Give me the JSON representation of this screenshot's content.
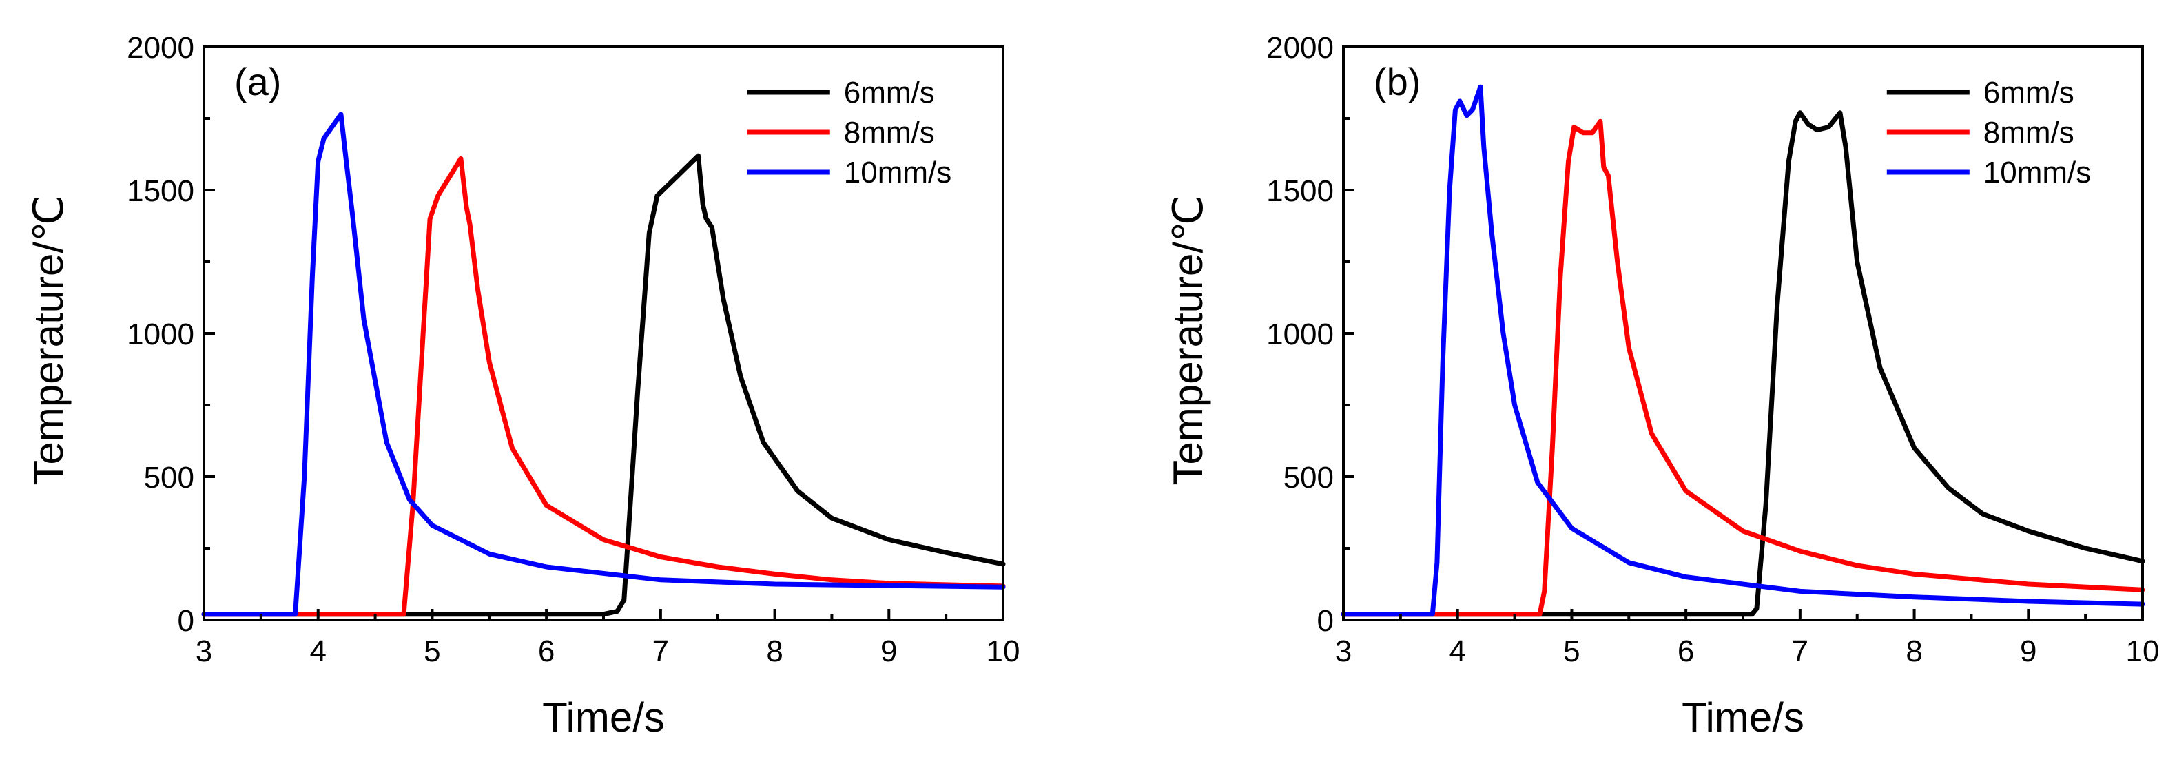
{
  "chart_data": [
    {
      "type": "line",
      "panel_label": "(a)",
      "xlabel": "Time/s",
      "ylabel": "Temperature/℃",
      "xlim": [
        3,
        10
      ],
      "ylim": [
        0,
        2000
      ],
      "xticks": [
        "3",
        "4",
        "5",
        "6",
        "7",
        "8",
        "9",
        "10"
      ],
      "yticks": [
        "0",
        "500",
        "1000",
        "1500",
        "2000"
      ],
      "legend_position": "top-right",
      "series": [
        {
          "name": "6mm/s",
          "color": "#000000",
          "x": [
            3,
            6.5,
            6.62,
            6.68,
            6.8,
            6.9,
            6.97,
            7.15,
            7.33,
            7.37,
            7.4,
            7.45,
            7.55,
            7.7,
            7.9,
            8.2,
            8.5,
            9.0,
            9.5,
            10
          ],
          "y": [
            20,
            20,
            30,
            70,
            800,
            1350,
            1480,
            1550,
            1620,
            1450,
            1400,
            1370,
            1120,
            850,
            620,
            450,
            355,
            280,
            235,
            195
          ]
        },
        {
          "name": "8mm/s",
          "color": "#ff0000",
          "x": [
            3,
            4.75,
            4.83,
            4.92,
            4.98,
            5.05,
            5.25,
            5.3,
            5.33,
            5.4,
            5.5,
            5.7,
            6.0,
            6.5,
            7.0,
            7.5,
            8.0,
            8.5,
            9.0,
            10
          ],
          "y": [
            20,
            20,
            400,
            1000,
            1400,
            1480,
            1610,
            1440,
            1380,
            1150,
            900,
            600,
            400,
            280,
            220,
            185,
            160,
            140,
            128,
            118
          ]
        },
        {
          "name": "10mm/s",
          "color": "#0000ff",
          "x": [
            3,
            3.8,
            3.88,
            3.95,
            4.0,
            4.05,
            4.2,
            4.25,
            4.3,
            4.4,
            4.6,
            4.8,
            5.0,
            5.5,
            6.0,
            7.0,
            8.0,
            9.0,
            10
          ],
          "y": [
            20,
            20,
            500,
            1200,
            1600,
            1680,
            1765,
            1590,
            1420,
            1050,
            620,
            420,
            330,
            230,
            185,
            140,
            125,
            120,
            115
          ]
        }
      ]
    },
    {
      "type": "line",
      "panel_label": "(b)",
      "xlabel": "Time/s",
      "ylabel": "Temperature/℃",
      "xlim": [
        3,
        10
      ],
      "ylim": [
        0,
        2000
      ],
      "xticks": [
        "3",
        "4",
        "5",
        "6",
        "7",
        "8",
        "9",
        "10"
      ],
      "yticks": [
        "0",
        "500",
        "1000",
        "1500",
        "2000"
      ],
      "legend_position": "top-right",
      "series": [
        {
          "name": "6mm/s",
          "color": "#000000",
          "x": [
            3,
            6.58,
            6.62,
            6.7,
            6.8,
            6.9,
            6.96,
            7.0,
            7.07,
            7.15,
            7.25,
            7.35,
            7.4,
            7.5,
            7.7,
            8.0,
            8.3,
            8.6,
            9.0,
            9.5,
            10
          ],
          "y": [
            20,
            20,
            40,
            400,
            1100,
            1600,
            1740,
            1770,
            1730,
            1710,
            1720,
            1770,
            1650,
            1250,
            880,
            600,
            460,
            370,
            310,
            250,
            205
          ]
        },
        {
          "name": "8mm/s",
          "color": "#ff0000",
          "x": [
            3,
            4.72,
            4.76,
            4.83,
            4.9,
            4.97,
            5.02,
            5.1,
            5.18,
            5.25,
            5.28,
            5.32,
            5.4,
            5.5,
            5.7,
            6.0,
            6.5,
            7.0,
            7.5,
            8.0,
            9.0,
            10
          ],
          "y": [
            20,
            20,
            100,
            600,
            1200,
            1600,
            1720,
            1700,
            1700,
            1740,
            1580,
            1550,
            1250,
            950,
            650,
            450,
            310,
            240,
            190,
            160,
            125,
            105
          ]
        },
        {
          "name": "10mm/s",
          "color": "#0000ff",
          "x": [
            3,
            3.78,
            3.82,
            3.87,
            3.93,
            3.98,
            4.02,
            4.08,
            4.13,
            4.2,
            4.23,
            4.3,
            4.4,
            4.5,
            4.7,
            5.0,
            5.5,
            6.0,
            7.0,
            8.0,
            9.0,
            10
          ],
          "y": [
            20,
            20,
            200,
            900,
            1500,
            1780,
            1810,
            1760,
            1780,
            1860,
            1650,
            1350,
            1000,
            750,
            480,
            320,
            200,
            150,
            100,
            80,
            65,
            55
          ]
        }
      ]
    }
  ]
}
